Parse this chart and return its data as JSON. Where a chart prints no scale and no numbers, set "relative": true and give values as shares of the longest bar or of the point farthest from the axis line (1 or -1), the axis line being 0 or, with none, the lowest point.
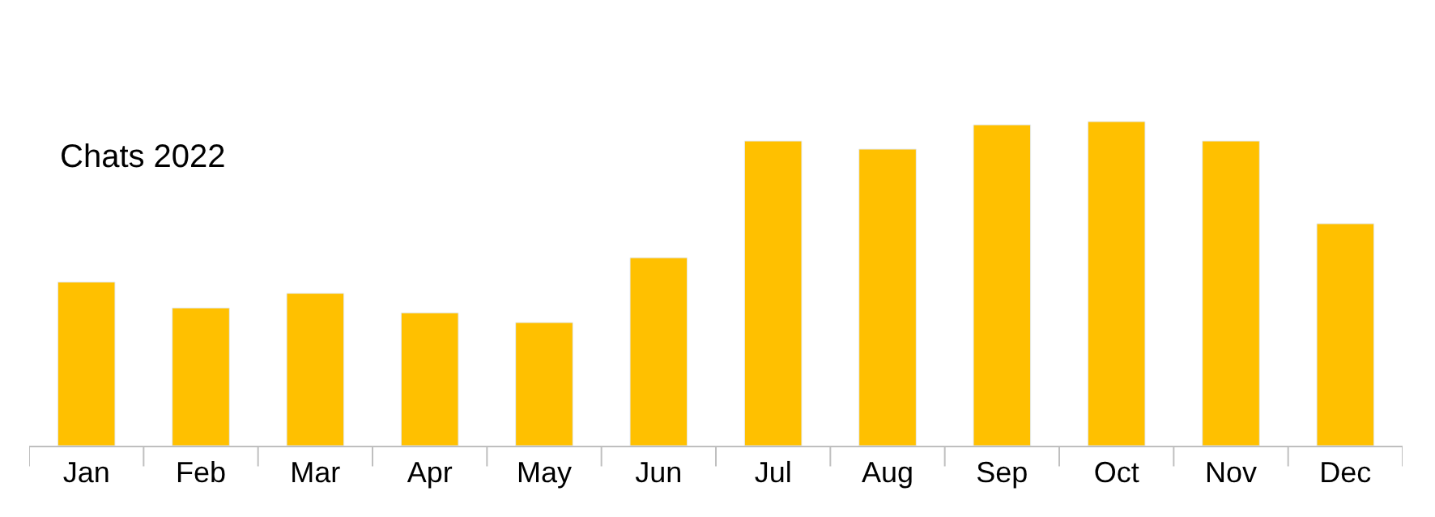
{
  "chart_data": {
    "type": "bar",
    "title": "Chats 2022",
    "relative": true,
    "categories": [
      "Jan",
      "Feb",
      "Mar",
      "Apr",
      "May",
      "Jun",
      "Jul",
      "Aug",
      "Sep",
      "Oct",
      "Nov",
      "Dec"
    ],
    "series": [
      {
        "color": "#ffc000",
        "values": [
          0.505,
          0.425,
          0.47,
          0.41,
          0.38,
          0.58,
          0.94,
          0.915,
          0.99,
          1,
          0.94,
          0.685
        ]
      }
    ]
  }
}
